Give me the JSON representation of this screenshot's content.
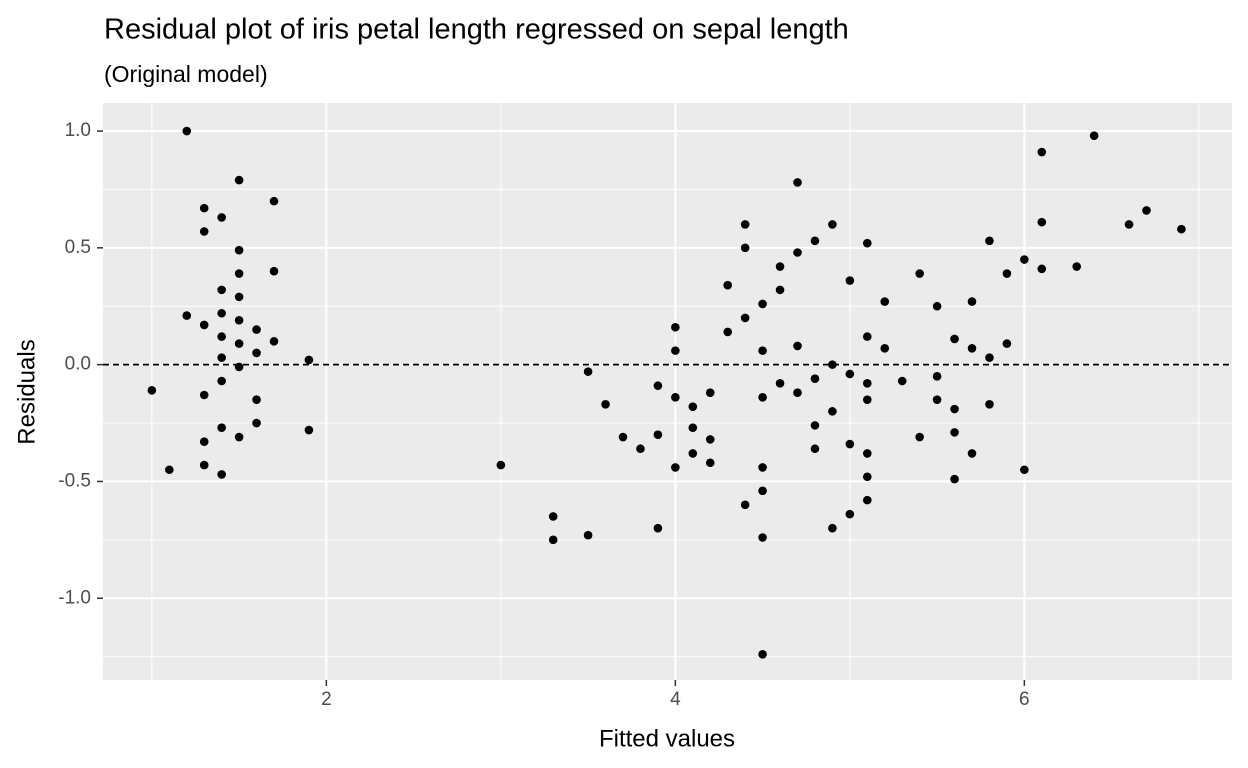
{
  "chart_data": {
    "type": "scatter",
    "title": "Residual plot of iris petal length regressed on sepal length",
    "subtitle": "(Original model)",
    "xlabel": "Fitted values",
    "ylabel": "Residuals",
    "color": "#000000",
    "xlim": [
      0.72,
      7.19
    ],
    "ylim": [
      -1.35,
      1.12
    ],
    "xticks": [
      2,
      4,
      6
    ],
    "yticks": [
      {
        "value": -1,
        "label": "-1.0"
      },
      -0.5,
      {
        "value": 0,
        "label": "0.0"
      },
      0.5,
      {
        "value": 1,
        "label": "1.0"
      }
    ],
    "xminor": [
      1,
      3,
      5,
      7
    ],
    "yminor": [
      -1.25,
      -0.75,
      -0.25,
      0.25,
      0.75
    ],
    "grid": true,
    "hline": 0,
    "x": [
      1.0,
      1.1,
      1.2,
      1.2,
      1.3,
      1.3,
      1.3,
      1.3,
      1.3,
      1.3,
      1.4,
      1.4,
      1.4,
      1.4,
      1.4,
      1.4,
      1.4,
      1.4,
      1.5,
      1.5,
      1.5,
      1.5,
      1.5,
      1.5,
      1.5,
      1.5,
      1.6,
      1.6,
      1.6,
      1.6,
      1.7,
      1.7,
      1.7,
      1.9,
      1.9,
      3.0,
      3.3,
      3.3,
      3.5,
      3.5,
      3.6,
      3.7,
      3.8,
      3.9,
      3.9,
      3.9,
      4.0,
      4.0,
      4.0,
      4.0,
      4.1,
      4.1,
      4.1,
      4.2,
      4.2,
      4.2,
      4.3,
      4.3,
      4.4,
      4.4,
      4.4,
      4.4,
      4.5,
      4.5,
      4.5,
      4.5,
      4.5,
      4.5,
      4.5,
      4.6,
      4.6,
      4.6,
      4.7,
      4.7,
      4.7,
      4.7,
      4.8,
      4.8,
      4.8,
      4.8,
      4.9,
      4.9,
      4.9,
      4.9,
      5.0,
      5.0,
      5.0,
      5.0,
      5.1,
      5.1,
      5.1,
      5.1,
      5.1,
      5.1,
      5.1,
      5.2,
      5.2,
      5.3,
      5.4,
      5.4,
      5.5,
      5.5,
      5.5,
      5.6,
      5.6,
      5.6,
      5.6,
      5.7,
      5.7,
      5.7,
      5.8,
      5.8,
      5.8,
      5.9,
      5.9,
      6.0,
      6.0,
      6.1,
      6.1,
      6.1,
      6.3,
      6.4,
      6.6,
      6.7,
      6.9
    ],
    "values": [
      -0.11,
      -0.45,
      1.0,
      0.21,
      0.67,
      0.57,
      0.17,
      -0.13,
      -0.33,
      -0.43,
      0.63,
      0.32,
      0.22,
      0.12,
      0.03,
      -0.07,
      -0.27,
      -0.47,
      0.79,
      0.49,
      0.39,
      0.29,
      0.19,
      0.09,
      -0.01,
      -0.31,
      0.15,
      0.05,
      -0.15,
      -0.25,
      0.7,
      0.4,
      0.1,
      0.02,
      -0.28,
      -0.43,
      -0.65,
      -0.75,
      -0.03,
      -0.73,
      -0.17,
      -0.31,
      -0.36,
      -0.09,
      -0.3,
      -0.7,
      0.16,
      0.06,
      -0.14,
      -0.44,
      -0.18,
      -0.27,
      -0.38,
      -0.12,
      -0.32,
      -0.42,
      0.34,
      0.14,
      0.6,
      0.5,
      0.2,
      -0.6,
      0.26,
      0.06,
      -0.14,
      -0.44,
      -0.54,
      -0.74,
      -1.24,
      0.42,
      0.32,
      -0.08,
      0.78,
      0.48,
      0.08,
      -0.12,
      0.53,
      -0.06,
      -0.26,
      -0.36,
      0.6,
      0.0,
      -0.2,
      -0.7,
      0.36,
      -0.04,
      -0.34,
      -0.64,
      0.52,
      0.12,
      -0.08,
      -0.15,
      -0.38,
      -0.48,
      -0.58,
      0.27,
      0.07,
      -0.07,
      0.39,
      -0.31,
      0.25,
      -0.05,
      -0.15,
      0.11,
      -0.19,
      -0.29,
      -0.49,
      0.27,
      0.07,
      -0.38,
      0.53,
      0.03,
      -0.17,
      0.39,
      0.09,
      0.45,
      -0.45,
      0.91,
      0.61,
      0.41,
      0.42,
      0.98,
      0.6,
      0.66,
      0.58
    ]
  }
}
